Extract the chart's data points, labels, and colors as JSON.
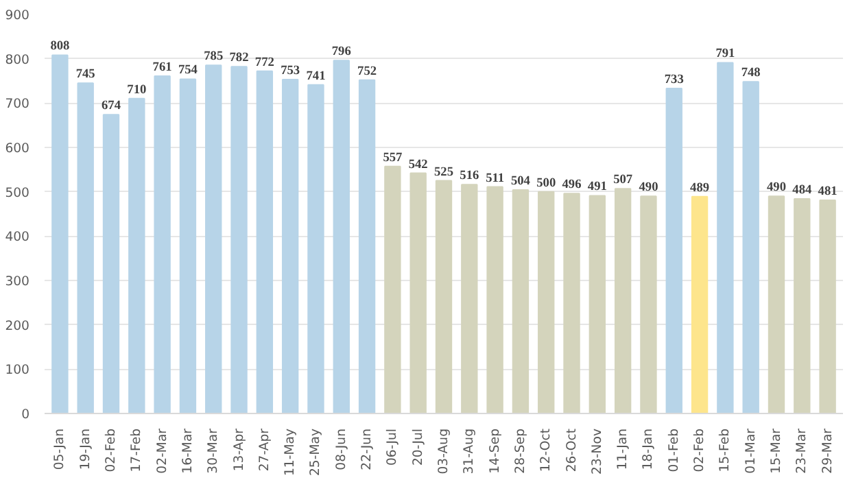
{
  "chart_data": {
    "type": "bar",
    "categories": [
      "05-Jan",
      "19-Jan",
      "02-Feb",
      "17-Feb",
      "02-Mar",
      "16-Mar",
      "30-Mar",
      "13-Apr",
      "27-Apr",
      "11-May",
      "25-May",
      "08-Jun",
      "22-Jun",
      "06-Jul",
      "20-Jul",
      "03-Aug",
      "31-Aug",
      "14-Sep",
      "28-Sep",
      "12-Oct",
      "26-Oct",
      "23-Nov",
      "11-Jan",
      "18-Jan",
      "01-Feb",
      "02-Feb",
      "15-Feb",
      "01-Mar",
      "15-Mar",
      "23-Mar",
      "29-Mar"
    ],
    "values": [
      808,
      745,
      674,
      710,
      761,
      754,
      785,
      782,
      772,
      753,
      741,
      796,
      752,
      557,
      542,
      525,
      516,
      511,
      504,
      500,
      496,
      491,
      507,
      490,
      733,
      489,
      791,
      748,
      490,
      484,
      481
    ],
    "colors": [
      "#b7d4e8",
      "#b7d4e8",
      "#b7d4e8",
      "#b7d4e8",
      "#b7d4e8",
      "#b7d4e8",
      "#b7d4e8",
      "#b7d4e8",
      "#b7d4e8",
      "#b7d4e8",
      "#b7d4e8",
      "#b7d4e8",
      "#b7d4e8",
      "#d4d4bc",
      "#d4d4bc",
      "#d4d4bc",
      "#d4d4bc",
      "#d4d4bc",
      "#d4d4bc",
      "#d4d4bc",
      "#d4d4bc",
      "#d4d4bc",
      "#d4d4bc",
      "#d4d4bc",
      "#b7d4e8",
      "#fde58c",
      "#b7d4e8",
      "#b7d4e8",
      "#d4d4bc",
      "#d4d4bc",
      "#d4d4bc"
    ],
    "ylim": [
      0,
      900
    ],
    "yticks": [
      0,
      100,
      200,
      300,
      400,
      500,
      600,
      700,
      800,
      900
    ],
    "grid": "y",
    "data_labels": true
  }
}
